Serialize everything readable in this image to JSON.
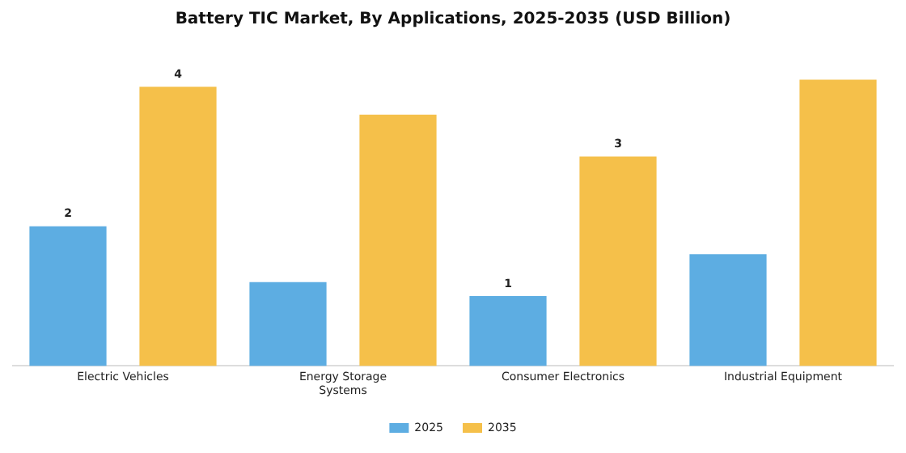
{
  "chart_data": {
    "type": "bar",
    "title": "Battery TIC Market, By Applications, 2025-2035 (USD Billion)",
    "categories": [
      "Electric Vehicles",
      "Energy Storage Systems",
      "Consumer Electronics",
      "Industrial Equipment"
    ],
    "tick_labels": "x",
    "legend": "bottom",
    "grid": false,
    "series": [
      {
        "name": "2025",
        "color": "#5dade2",
        "values": [
          2,
          1.2,
          1,
          1.6
        ],
        "value_labels": [
          "2",
          null,
          "1",
          null
        ]
      },
      {
        "name": "2035",
        "color": "#f5c04a",
        "values": [
          4,
          3.6,
          3,
          4.1
        ],
        "value_labels": [
          "4",
          null,
          "3",
          null
        ]
      }
    ]
  }
}
